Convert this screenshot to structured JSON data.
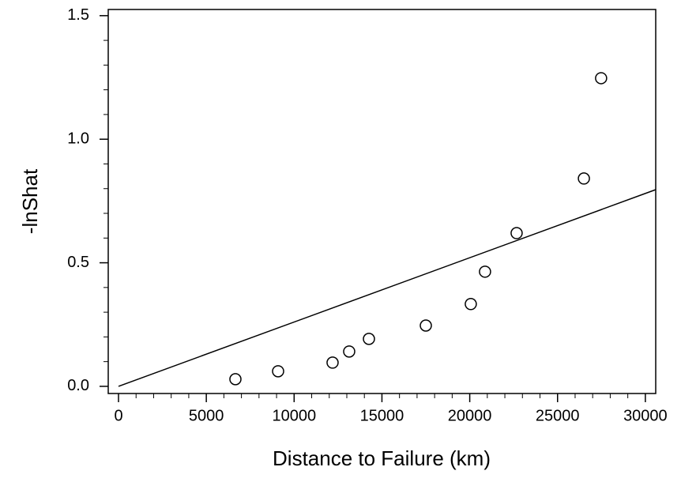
{
  "chart_data": {
    "type": "scatter",
    "x_label": "Distance to Failure (km)",
    "y_label": "-lnShat",
    "series": [
      {
        "x": [
          6657,
          9087,
          12190,
          13135,
          14260,
          17500,
          20060,
          20870,
          22670,
          26500,
          27480
        ],
        "values": [
          0.029,
          0.061,
          0.096,
          0.141,
          0.192,
          0.246,
          0.333,
          0.464,
          0.62,
          0.841,
          1.247
        ],
        "color": "#000000",
        "marker": "open-circle"
      }
    ],
    "fit_line": {
      "x": [
        0,
        30590
      ],
      "values": [
        0,
        0.796
      ],
      "color": "#000000"
    },
    "xlim": [
      -585,
      30590
    ],
    "ylim": [
      -0.029,
      1.525
    ],
    "xticks": [
      0,
      5000,
      10000,
      15000,
      20000,
      25000,
      30000
    ],
    "xminorticks": [
      1000,
      2000,
      3000,
      4000,
      6000,
      7000,
      8000,
      9000,
      11000,
      12000,
      13000,
      14000,
      16000,
      17000,
      18000,
      19000,
      21000,
      22000,
      23000,
      24000,
      26000,
      27000,
      28000,
      29000
    ],
    "yticks": [
      {
        "value": 0,
        "label": "0.0"
      },
      {
        "value": 0.5,
        "label": "0.5"
      },
      {
        "value": 1.0,
        "label": "1.0"
      },
      {
        "value": 1.5,
        "label": "1.5"
      }
    ],
    "yminorticks": [
      0.1,
      0.2,
      0.3,
      0.4,
      0.6,
      0.7,
      0.8,
      0.9,
      1.1,
      1.2,
      1.3,
      1.4
    ]
  }
}
